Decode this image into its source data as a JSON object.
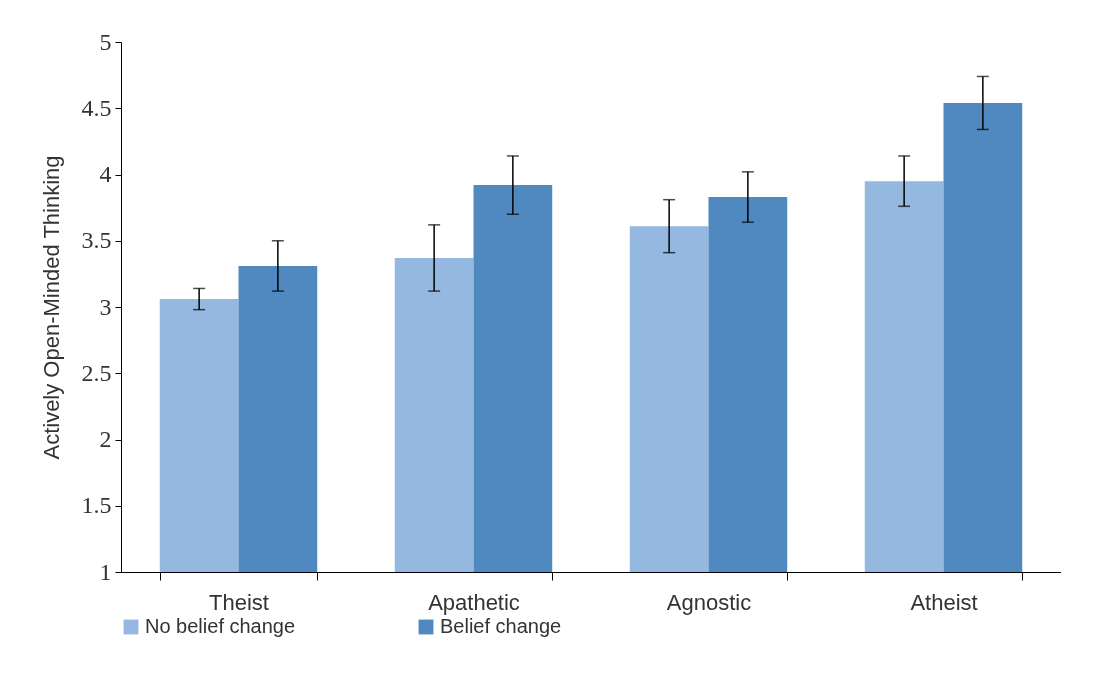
{
  "chart_data": {
    "type": "bar",
    "ylabel": "Actively Open-Minded Thinking",
    "categories": [
      "Theist",
      "Apathetic",
      "Agnostic",
      "Atheist"
    ],
    "series": [
      {
        "name": "No belief change",
        "color": "#95b8e0",
        "values": [
          3.06,
          3.37,
          3.61,
          3.95
        ],
        "errors": [
          0.08,
          0.25,
          0.2,
          0.19
        ]
      },
      {
        "name": "Belief change",
        "color": "#4f89c0",
        "values": [
          3.31,
          3.92,
          3.83,
          4.54
        ],
        "errors": [
          0.19,
          0.22,
          0.19,
          0.2
        ]
      }
    ],
    "ylim": [
      1,
      5
    ],
    "yticks": [
      1,
      1.5,
      2,
      2.5,
      3,
      3.5,
      4,
      4.5,
      5
    ],
    "grid": false,
    "legend": "bottom"
  }
}
